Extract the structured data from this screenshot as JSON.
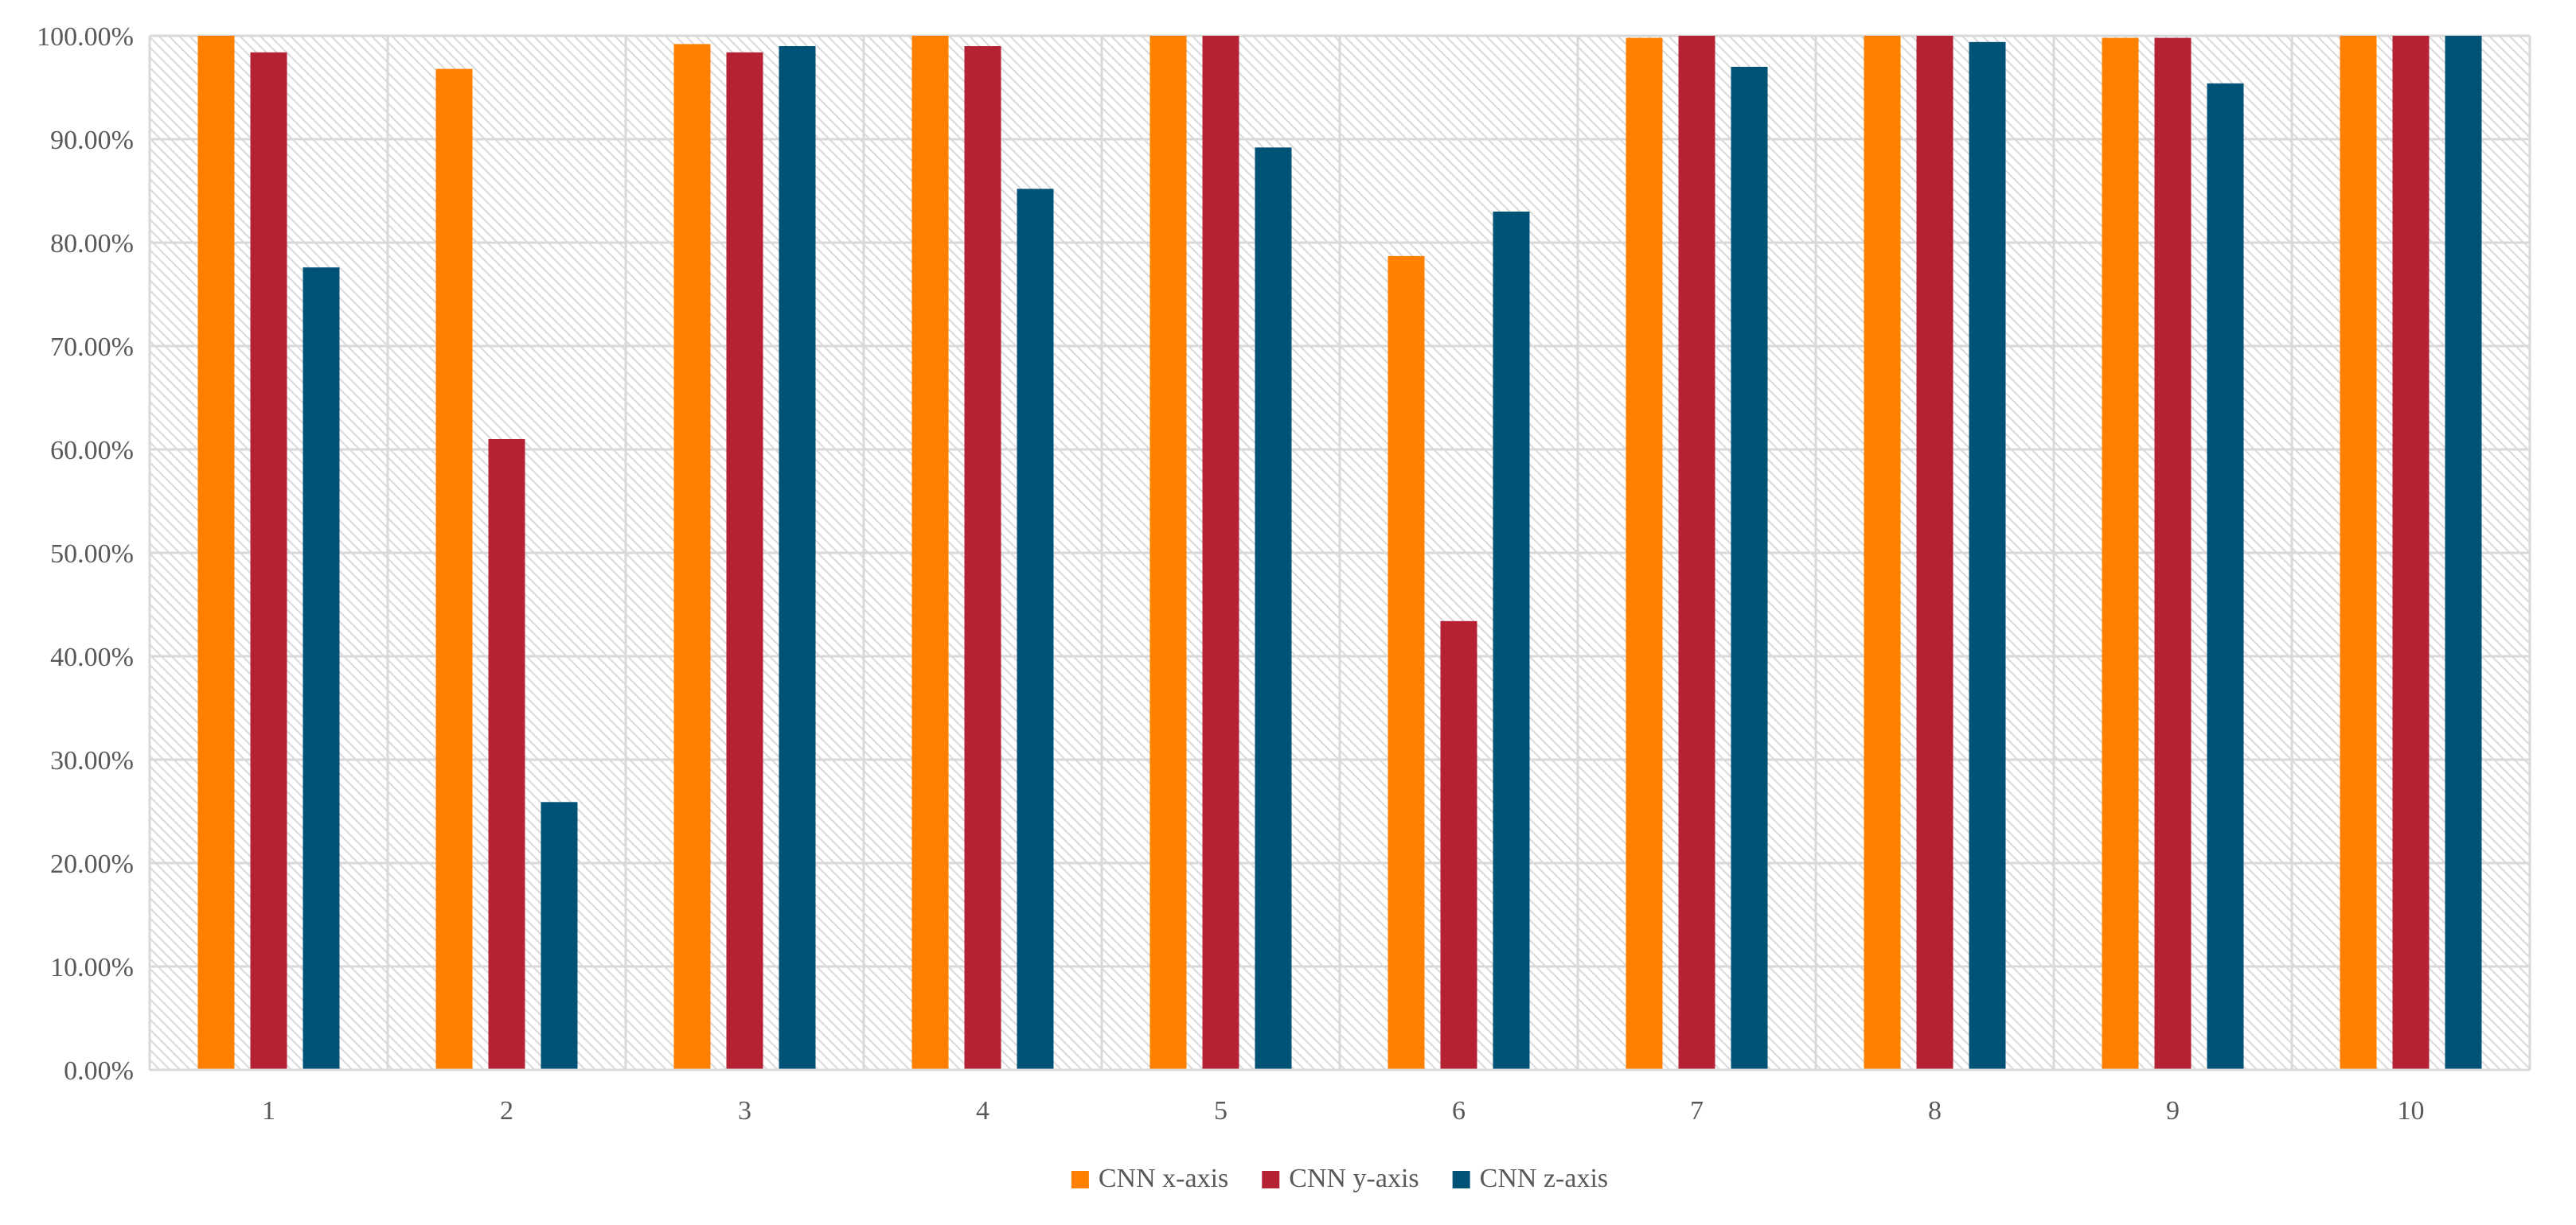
{
  "chart_data": {
    "type": "bar",
    "title": "",
    "xlabel": "",
    "ylabel": "",
    "ylim": [
      0,
      100
    ],
    "ytick_step": 10,
    "ytick_labels": [
      "0.00%",
      "10.00%",
      "20.00%",
      "30.00%",
      "40.00%",
      "50.00%",
      "60.00%",
      "70.00%",
      "80.00%",
      "90.00%",
      "100.00%"
    ],
    "categories": [
      "1",
      "2",
      "3",
      "4",
      "5",
      "6",
      "7",
      "8",
      "9",
      "10"
    ],
    "series": [
      {
        "name": "CNN x-axis",
        "color": "#FF8000",
        "values": [
          100,
          96.8,
          99.2,
          100,
          100,
          78.7,
          99.8,
          100,
          99.8,
          100
        ]
      },
      {
        "name": "CNN y-axis",
        "color": "#B52233",
        "values": [
          98.4,
          61.0,
          98.4,
          99.0,
          100,
          43.4,
          100,
          100,
          99.8,
          100
        ]
      },
      {
        "name": "CNN z-axis",
        "color": "#005377",
        "values": [
          77.6,
          25.9,
          99.0,
          85.2,
          89.2,
          83.0,
          97.0,
          99.4,
          95.4,
          100
        ]
      }
    ],
    "grid": true,
    "legend_position": "bottom-center"
  }
}
